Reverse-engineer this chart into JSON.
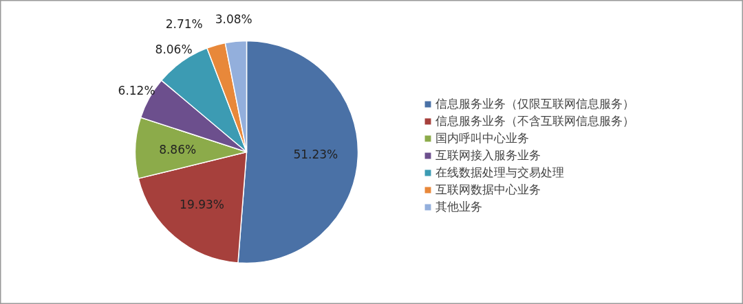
{
  "chart_data": {
    "type": "pie",
    "categories": [
      "信息服务业务（仅限互联网信息服务）",
      "信息服务业务（不含互联网信息服务）",
      "国内呼叫中心业务",
      "互联网接入服务业务",
      "在线数据处理与交易处理",
      "互联网数据中心业务",
      "其他业务"
    ],
    "values": [
      51.23,
      19.93,
      8.86,
      6.12,
      8.06,
      2.71,
      3.08
    ],
    "value_labels": [
      "51.23%",
      "19.93%",
      "8.86%",
      "6.12%",
      "8.06%",
      "2.71%",
      "3.08%"
    ],
    "colors": [
      "#4a71a6",
      "#a6403c",
      "#8cab4a",
      "#6c4f8d",
      "#3c9bb3",
      "#e8883a",
      "#93afdc"
    ],
    "legend": "right"
  }
}
